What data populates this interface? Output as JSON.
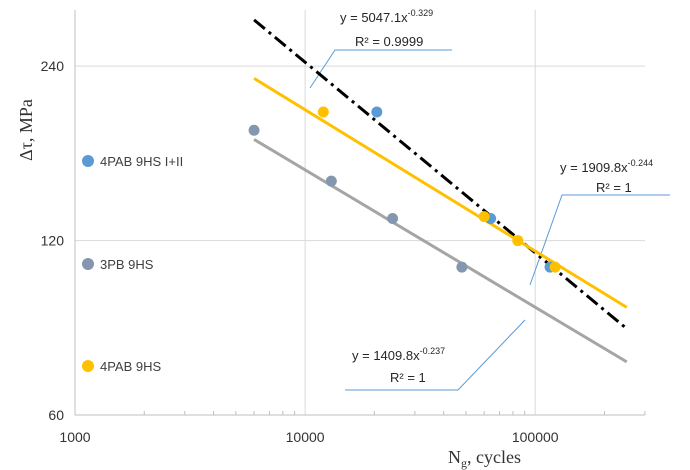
{
  "chart_data": {
    "type": "scatter",
    "xscale": "log",
    "yscale": "log",
    "xlim": [
      1000,
      300000
    ],
    "ylim": [
      60,
      300
    ],
    "xticks": [
      1000,
      10000,
      100000
    ],
    "xtick_labels": [
      "1000",
      "10000",
      "100000"
    ],
    "yticks": [
      60,
      120,
      240
    ],
    "ytick_labels": [
      "60",
      "120",
      "240"
    ],
    "grid": true,
    "xlabel": "N",
    "xlabel_sub": "g",
    "xlabel_suffix": ", cycles",
    "ylabel": "Δτ, MPa",
    "legend_position": "left",
    "series": [
      {
        "name": "4PAB 9HS I+II",
        "color": "#5b9bd5",
        "x": [
          20500,
          64000,
          116000
        ],
        "y": [
          200,
          131,
          108
        ]
      },
      {
        "name": "3PB 9HS",
        "color": "#8497b0",
        "x": [
          6000,
          13000,
          24000,
          48000
        ],
        "y": [
          186,
          152,
          131,
          108
        ]
      },
      {
        "name": "4PAB 9HS",
        "color": "#ffc000",
        "x": [
          12000,
          60000,
          84000,
          122000
        ],
        "y": [
          200,
          132,
          120,
          108
        ]
      }
    ],
    "trendlines": [
      {
        "series": "4PAB 9HS I+II",
        "a": 5047.1,
        "b": -0.329,
        "x_range": [
          6000,
          250000
        ],
        "color": "#000000",
        "style": "dashdot",
        "equation_base": "y = 5047.1x",
        "equation_exp": "-0.329",
        "r2_label": "R² = 0.9999"
      },
      {
        "series": "4PAB 9HS",
        "a": 1909.8,
        "b": -0.244,
        "x_range": [
          6000,
          250000
        ],
        "color": "#ffc000",
        "style": "solid",
        "equation_base": "y = 1909.8x",
        "equation_exp": "-0.244",
        "r2_label": "R² = 1"
      },
      {
        "series": "3PB 9HS",
        "a": 1409.8,
        "b": -0.237,
        "x_range": [
          6000,
          250000
        ],
        "color": "#a5a5a5",
        "style": "solid",
        "equation_base": "y = 1409.8x",
        "equation_exp": "-0.237",
        "r2_label": "R² = 1"
      }
    ]
  }
}
